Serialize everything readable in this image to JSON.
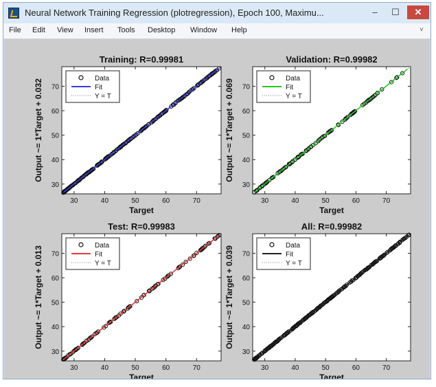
{
  "window": {
    "title": "Neural Network Training Regression (plotregression), Epoch 100, Maximu...",
    "controls": {
      "minimize": "–",
      "maximize": "☐",
      "close": "✕"
    }
  },
  "menu": {
    "items": [
      "File",
      "Edit",
      "View",
      "Insert",
      "Tools",
      "Desktop",
      "Window",
      "Help"
    ],
    "overflow_arrow": "˅"
  },
  "chart_data": [
    {
      "type": "scatter",
      "title": "Training: R=0.99981",
      "xlabel": "Target",
      "ylabel": "Output ~= 1*Target + 0.032",
      "xlim": [
        26,
        78
      ],
      "ylim": [
        26,
        78
      ],
      "xticks": [
        30,
        40,
        50,
        60,
        70
      ],
      "yticks": [
        30,
        40,
        50,
        60,
        70
      ],
      "grid": false,
      "legend": {
        "placement": "top-left",
        "entries": [
          "Data",
          "Fit",
          "Y = T"
        ]
      },
      "fit_color": "#3b3bd6",
      "fit_line": {
        "slope": 1,
        "intercept": 0.032
      },
      "data_range": [
        26.5,
        77.5
      ],
      "density": "dense"
    },
    {
      "type": "scatter",
      "title": "Validation: R=0.99982",
      "xlabel": "Target",
      "ylabel": "Output ~= 1*Target + 0.069",
      "xlim": [
        26,
        78
      ],
      "ylim": [
        26,
        78
      ],
      "xticks": [
        30,
        40,
        50,
        60,
        70
      ],
      "yticks": [
        30,
        40,
        50,
        60,
        70
      ],
      "grid": false,
      "legend": {
        "placement": "top-left",
        "entries": [
          "Data",
          "Fit",
          "Y = T"
        ]
      },
      "fit_color": "#22c722",
      "fit_line": {
        "slope": 1,
        "intercept": 0.069
      },
      "data_range": [
        26.5,
        77
      ],
      "density": "medium"
    },
    {
      "type": "scatter",
      "title": "Test: R=0.99983",
      "xlabel": "Target",
      "ylabel": "Output ~= 1*Target + 0.013",
      "xlim": [
        26,
        78
      ],
      "ylim": [
        26,
        78
      ],
      "xticks": [
        30,
        40,
        50,
        60,
        70
      ],
      "yticks": [
        30,
        40,
        50,
        60,
        70
      ],
      "grid": false,
      "legend": {
        "placement": "top-left",
        "entries": [
          "Data",
          "Fit",
          "Y = T"
        ]
      },
      "fit_color": "#e03b3b",
      "fit_line": {
        "slope": 1,
        "intercept": 0.013
      },
      "data_range": [
        26.5,
        77.5
      ],
      "density": "medium"
    },
    {
      "type": "scatter",
      "title": "All: R=0.99982",
      "xlabel": "Target",
      "ylabel": "Output ~= 1*Target + 0.039",
      "xlim": [
        26,
        78
      ],
      "ylim": [
        26,
        78
      ],
      "xticks": [
        30,
        40,
        50,
        60,
        70
      ],
      "yticks": [
        30,
        40,
        50,
        60,
        70
      ],
      "grid": false,
      "legend": {
        "placement": "top-left",
        "entries": [
          "Data",
          "Fit",
          "Y = T"
        ]
      },
      "fit_color": "#222222",
      "fit_line": {
        "slope": 1,
        "intercept": 0.039
      },
      "data_range": [
        26.5,
        77.5
      ],
      "density": "dense"
    }
  ]
}
